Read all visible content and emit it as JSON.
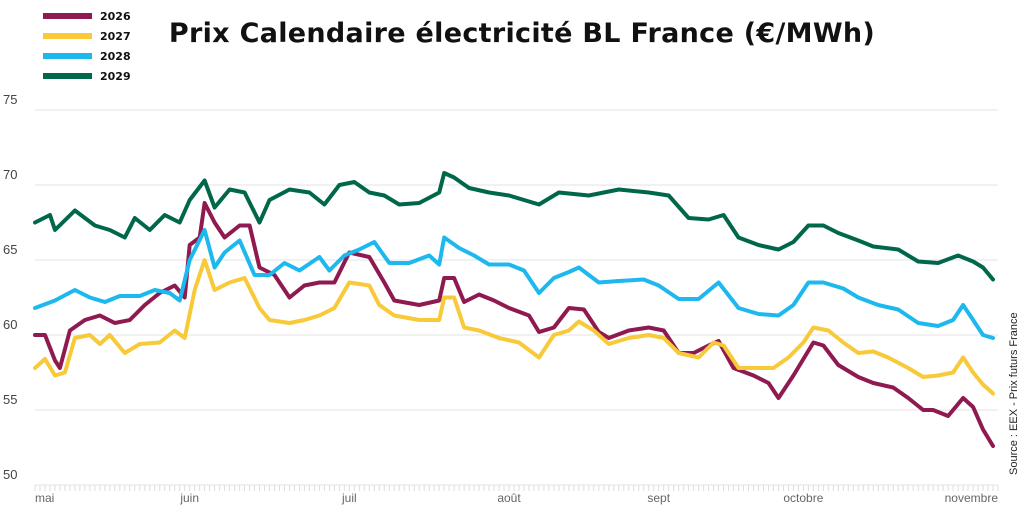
{
  "chart_data": {
    "type": "line",
    "title": "Prix Calendaire électricité BL France (€/MWh)",
    "source": "Source : EEX - Prix futurs France",
    "xlabel": "",
    "ylabel": "",
    "x_unit": "days since 1 May",
    "xlim": [
      0,
      193
    ],
    "ylim": [
      50,
      75
    ],
    "yticks": [
      50,
      55,
      60,
      65,
      70,
      75
    ],
    "grid": true,
    "legend_position": "top-left",
    "month_ticks": [
      {
        "label": "mai",
        "day": 0
      },
      {
        "label": "juin",
        "day": 31
      },
      {
        "label": "juil",
        "day": 63
      },
      {
        "label": "août",
        "day": 95
      },
      {
        "label": "sept",
        "day": 125
      },
      {
        "label": "octobre",
        "day": 154
      },
      {
        "label": "novembre",
        "day": 190
      }
    ],
    "series": [
      {
        "name": "2026",
        "color": "#8f1a50",
        "points": [
          [
            0,
            60
          ],
          [
            2,
            60
          ],
          [
            4,
            58.3
          ],
          [
            5,
            57.8
          ],
          [
            7,
            60.3
          ],
          [
            10,
            61
          ],
          [
            13,
            61.3
          ],
          [
            16,
            60.8
          ],
          [
            19,
            61
          ],
          [
            22,
            62
          ],
          [
            25,
            62.8
          ],
          [
            28,
            63.3
          ],
          [
            30,
            62.5
          ],
          [
            31,
            66
          ],
          [
            33,
            66.5
          ],
          [
            34,
            68.8
          ],
          [
            36,
            67.5
          ],
          [
            38,
            66.5
          ],
          [
            41,
            67.3
          ],
          [
            43,
            67.3
          ],
          [
            45,
            64.5
          ],
          [
            48,
            64
          ],
          [
            51,
            62.5
          ],
          [
            54,
            63.3
          ],
          [
            57,
            63.5
          ],
          [
            60,
            63.5
          ],
          [
            63,
            65.5
          ],
          [
            67,
            65.2
          ],
          [
            70,
            63.5
          ],
          [
            72,
            62.3
          ],
          [
            77,
            62
          ],
          [
            81,
            62.3
          ],
          [
            82,
            63.8
          ],
          [
            84,
            63.8
          ],
          [
            86,
            62.2
          ],
          [
            89,
            62.7
          ],
          [
            92,
            62.3
          ],
          [
            95,
            61.8
          ],
          [
            99,
            61.3
          ],
          [
            101,
            60.2
          ],
          [
            104,
            60.5
          ],
          [
            107,
            61.8
          ],
          [
            110,
            61.7
          ],
          [
            113,
            60.2
          ],
          [
            115,
            59.8
          ],
          [
            119,
            60.3
          ],
          [
            123,
            60.5
          ],
          [
            126,
            60.3
          ],
          [
            129,
            58.8
          ],
          [
            132,
            58.8
          ],
          [
            135,
            59.3
          ],
          [
            137,
            59.6
          ],
          [
            140,
            57.8
          ],
          [
            144,
            57.3
          ],
          [
            147,
            56.8
          ],
          [
            149,
            55.8
          ],
          [
            152,
            57.3
          ],
          [
            156,
            59.5
          ],
          [
            158,
            59.3
          ],
          [
            161,
            58
          ],
          [
            165,
            57.2
          ],
          [
            168,
            56.8
          ],
          [
            172,
            56.5
          ],
          [
            175,
            55.8
          ],
          [
            178,
            55
          ],
          [
            180,
            55
          ],
          [
            183,
            54.6
          ],
          [
            186,
            55.8
          ],
          [
            188,
            55.2
          ],
          [
            190,
            53.7
          ],
          [
            192,
            52.6
          ]
        ]
      },
      {
        "name": "2027",
        "color": "#f8c938",
        "points": [
          [
            0,
            57.8
          ],
          [
            2,
            58.4
          ],
          [
            4,
            57.3
          ],
          [
            6,
            57.5
          ],
          [
            8,
            59.8
          ],
          [
            11,
            60
          ],
          [
            13,
            59.4
          ],
          [
            15,
            60
          ],
          [
            18,
            58.8
          ],
          [
            21,
            59.4
          ],
          [
            25,
            59.5
          ],
          [
            28,
            60.3
          ],
          [
            30,
            59.8
          ],
          [
            32,
            63
          ],
          [
            34,
            65
          ],
          [
            36,
            63
          ],
          [
            39,
            63.5
          ],
          [
            42,
            63.8
          ],
          [
            45,
            61.8
          ],
          [
            47,
            61
          ],
          [
            51,
            60.8
          ],
          [
            54,
            61
          ],
          [
            57,
            61.3
          ],
          [
            60,
            61.8
          ],
          [
            63,
            63.5
          ],
          [
            67,
            63.3
          ],
          [
            69,
            62
          ],
          [
            72,
            61.3
          ],
          [
            77,
            61
          ],
          [
            81,
            61
          ],
          [
            82,
            62.5
          ],
          [
            84,
            62.5
          ],
          [
            86,
            60.5
          ],
          [
            89,
            60.3
          ],
          [
            93,
            59.8
          ],
          [
            97,
            59.5
          ],
          [
            101,
            58.5
          ],
          [
            104,
            60
          ],
          [
            107,
            60.3
          ],
          [
            109,
            60.9
          ],
          [
            112,
            60.3
          ],
          [
            115,
            59.4
          ],
          [
            119,
            59.8
          ],
          [
            123,
            60
          ],
          [
            126,
            59.8
          ],
          [
            129,
            58.8
          ],
          [
            133,
            58.5
          ],
          [
            136,
            59.5
          ],
          [
            138,
            59.3
          ],
          [
            141,
            57.8
          ],
          [
            145,
            57.8
          ],
          [
            148,
            57.8
          ],
          [
            151,
            58.5
          ],
          [
            154,
            59.5
          ],
          [
            156,
            60.5
          ],
          [
            159,
            60.3
          ],
          [
            162,
            59.5
          ],
          [
            165,
            58.8
          ],
          [
            168,
            58.9
          ],
          [
            171,
            58.5
          ],
          [
            175,
            57.8
          ],
          [
            178,
            57.2
          ],
          [
            181,
            57.3
          ],
          [
            184,
            57.5
          ],
          [
            186,
            58.5
          ],
          [
            188,
            57.5
          ],
          [
            190,
            56.7
          ],
          [
            192,
            56.1
          ]
        ]
      },
      {
        "name": "2028",
        "color": "#1db9ee",
        "points": [
          [
            0,
            61.8
          ],
          [
            4,
            62.3
          ],
          [
            8,
            63
          ],
          [
            11,
            62.5
          ],
          [
            14,
            62.2
          ],
          [
            17,
            62.6
          ],
          [
            21,
            62.6
          ],
          [
            24,
            63
          ],
          [
            27,
            62.8
          ],
          [
            29,
            62.3
          ],
          [
            31,
            65
          ],
          [
            34,
            67
          ],
          [
            36,
            64.5
          ],
          [
            38,
            65.5
          ],
          [
            41,
            66.3
          ],
          [
            44,
            64
          ],
          [
            47,
            64
          ],
          [
            50,
            64.8
          ],
          [
            53,
            64.3
          ],
          [
            57,
            65.2
          ],
          [
            59,
            64.3
          ],
          [
            62,
            65.3
          ],
          [
            65,
            65.7
          ],
          [
            68,
            66.2
          ],
          [
            71,
            64.8
          ],
          [
            75,
            64.8
          ],
          [
            79,
            65.3
          ],
          [
            81,
            64.7
          ],
          [
            82,
            66.5
          ],
          [
            85,
            65.8
          ],
          [
            88,
            65.3
          ],
          [
            91,
            64.7
          ],
          [
            95,
            64.7
          ],
          [
            98,
            64.3
          ],
          [
            101,
            62.8
          ],
          [
            104,
            63.8
          ],
          [
            107,
            64.2
          ],
          [
            109,
            64.5
          ],
          [
            113,
            63.5
          ],
          [
            117,
            63.6
          ],
          [
            122,
            63.7
          ],
          [
            125,
            63.3
          ],
          [
            129,
            62.4
          ],
          [
            133,
            62.4
          ],
          [
            137,
            63.5
          ],
          [
            141,
            61.8
          ],
          [
            145,
            61.4
          ],
          [
            149,
            61.3
          ],
          [
            152,
            62
          ],
          [
            155,
            63.5
          ],
          [
            158,
            63.5
          ],
          [
            162,
            63.1
          ],
          [
            165,
            62.5
          ],
          [
            169,
            62
          ],
          [
            173,
            61.7
          ],
          [
            177,
            60.8
          ],
          [
            181,
            60.6
          ],
          [
            184,
            61
          ],
          [
            186,
            62
          ],
          [
            188,
            61
          ],
          [
            190,
            60
          ],
          [
            192,
            59.8
          ]
        ]
      },
      {
        "name": "2029",
        "color": "#00674b",
        "points": [
          [
            0,
            67.5
          ],
          [
            3,
            68
          ],
          [
            4,
            67
          ],
          [
            8,
            68.3
          ],
          [
            12,
            67.3
          ],
          [
            15,
            67
          ],
          [
            18,
            66.5
          ],
          [
            20,
            67.8
          ],
          [
            23,
            67
          ],
          [
            26,
            68
          ],
          [
            29,
            67.5
          ],
          [
            31,
            69
          ],
          [
            34,
            70.3
          ],
          [
            36,
            68.5
          ],
          [
            39,
            69.7
          ],
          [
            42,
            69.5
          ],
          [
            45,
            67.5
          ],
          [
            47,
            69
          ],
          [
            51,
            69.7
          ],
          [
            55,
            69.5
          ],
          [
            58,
            68.7
          ],
          [
            61,
            70
          ],
          [
            64,
            70.2
          ],
          [
            67,
            69.5
          ],
          [
            70,
            69.3
          ],
          [
            73,
            68.7
          ],
          [
            77,
            68.8
          ],
          [
            81,
            69.5
          ],
          [
            82,
            70.8
          ],
          [
            84,
            70.5
          ],
          [
            87,
            69.8
          ],
          [
            91,
            69.5
          ],
          [
            95,
            69.3
          ],
          [
            101,
            68.7
          ],
          [
            105,
            69.5
          ],
          [
            111,
            69.3
          ],
          [
            117,
            69.7
          ],
          [
            123,
            69.5
          ],
          [
            127,
            69.3
          ],
          [
            131,
            67.8
          ],
          [
            135,
            67.7
          ],
          [
            138,
            68
          ],
          [
            141,
            66.5
          ],
          [
            145,
            66
          ],
          [
            149,
            65.7
          ],
          [
            152,
            66.2
          ],
          [
            155,
            67.3
          ],
          [
            158,
            67.3
          ],
          [
            161,
            66.8
          ],
          [
            165,
            66.3
          ],
          [
            168,
            65.9
          ],
          [
            173,
            65.7
          ],
          [
            177,
            64.9
          ],
          [
            181,
            64.8
          ],
          [
            185,
            65.3
          ],
          [
            188,
            64.9
          ],
          [
            190,
            64.5
          ],
          [
            192,
            63.7
          ]
        ]
      }
    ]
  }
}
